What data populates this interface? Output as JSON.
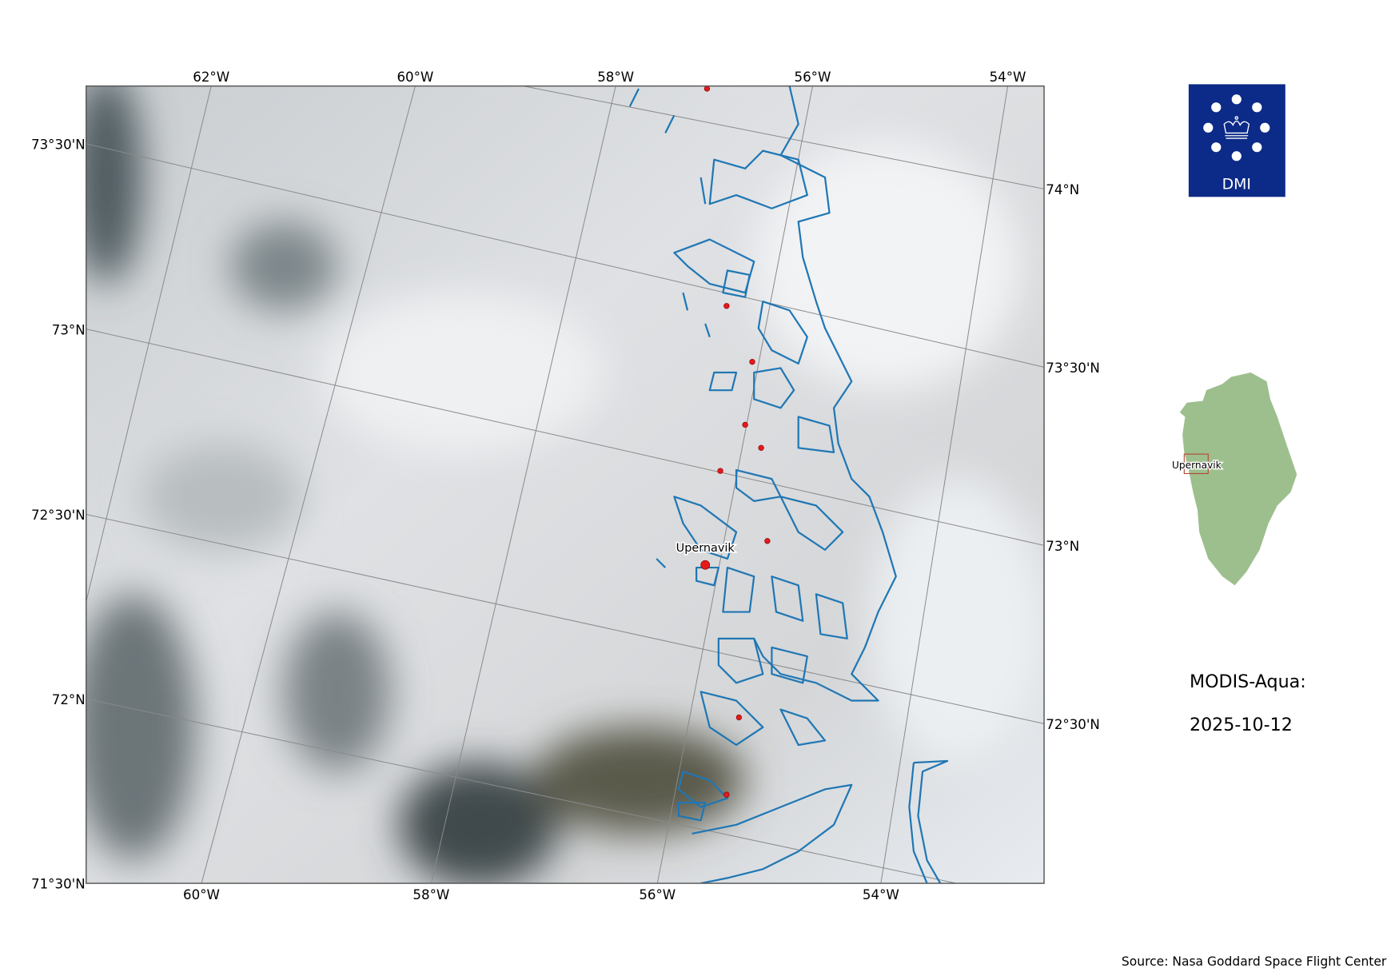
{
  "map": {
    "place_label": "Upernavik",
    "top_lon_labels": [
      "62°W",
      "60°W",
      "58°W",
      "56°W",
      "54°W"
    ],
    "bottom_lon_labels": [
      "60°W",
      "58°W",
      "56°W",
      "54°W"
    ],
    "left_lat_labels": [
      "73°30'N",
      "73°N",
      "72°30'N",
      "72°N",
      "71°30'N"
    ],
    "right_lat_labels": [
      "74°N",
      "73°30'N",
      "73°N",
      "72°30'N"
    ],
    "coastline_color": "#1f77b4",
    "settlement_color": "#e41a1c"
  },
  "logo": {
    "text": "DMI",
    "color": "#0c2a87"
  },
  "inset": {
    "place_label": "Upernavik",
    "land_color": "#9dbf8e",
    "box_color": "#b5472f"
  },
  "info": {
    "title": "MODIS-Aqua:",
    "date": "2025-10-12"
  },
  "footer": {
    "source": "Source: Nasa Goddard Space Flight Center"
  }
}
